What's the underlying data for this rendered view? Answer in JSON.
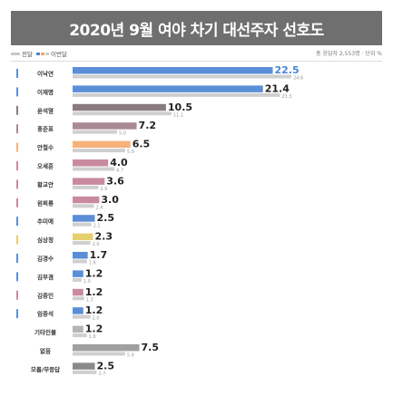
{
  "header": {
    "title": "2020년 9월 여야 차기 대선주자 선호도"
  },
  "legend": {
    "previous_label": "전달",
    "current_label": "이번달",
    "survey_note": "총 응답자 2,553명 · 단위 %"
  },
  "colors": {
    "previous": "#cfcfcf",
    "blue": "#5a8fd8",
    "gray_dark": "#8a8a8a",
    "mauve": "#a88a96",
    "orange": "#f5b27a",
    "pink": "#c98aa0",
    "yellow": "#e6cf6e",
    "light_gray": "#b5b5b5"
  },
  "chart_data": {
    "type": "bar",
    "orientation": "horizontal",
    "categories": [
      "이낙연",
      "이재명",
      "윤석열",
      "홍준표",
      "안철수",
      "오세훈",
      "황교안",
      "원희룡",
      "추미애",
      "심상정",
      "김경수",
      "김부겸",
      "김종인",
      "임종석",
      "기타인물",
      "없음",
      "모름/무응답"
    ],
    "series": [
      {
        "name": "이번달",
        "values": [
          22.5,
          21.4,
          10.5,
          7.2,
          6.5,
          4.0,
          3.6,
          3.0,
          2.5,
          2.3,
          1.7,
          1.2,
          1.2,
          1.2,
          1.2,
          7.5,
          2.5
        ]
      },
      {
        "name": "전달",
        "values": [
          24.6,
          23.3,
          11.1,
          5.0,
          5.9,
          4.7,
          2.9,
          2.4,
          2.1,
          2.0,
          1.6,
          1.0,
          1.3,
          2.0,
          1.6,
          5.9,
          2.7
        ]
      }
    ],
    "current_labels": [
      "22.5",
      "21.4",
      "10.5",
      "7.2",
      "6.5",
      "4.0",
      "3.6",
      "3.0",
      "2.5",
      "2.3",
      "1.7",
      "1.2",
      "1.2",
      "1.2",
      "1.2",
      "7.5",
      "2.5"
    ],
    "previous_labels": [
      "24.6",
      "23.3",
      "11.1",
      "5.0",
      "5.9",
      "4.7",
      "2.9",
      "2.4",
      "2.1",
      "2.0",
      "1.6",
      "1.0",
      "1.3",
      "2.0",
      "1.6",
      "5.9",
      "2.7"
    ],
    "bar_colors": [
      "#5a8fd8",
      "#5a8fd8",
      "#8a7b80",
      "#a88a96",
      "#f5b27a",
      "#c98aa0",
      "#c98aa0",
      "#c98aa0",
      "#5a8fd8",
      "#e6cf6e",
      "#5a8fd8",
      "#5a8fd8",
      "#c98aa0",
      "#5a8fd8",
      "#b5b5b5",
      "#a0a0a0",
      "#8a8a8a"
    ],
    "marker_colors": [
      "#5a8fd8",
      "#5a8fd8",
      "#8a7b80",
      "#a88a96",
      "#f5b27a",
      "#c98aa0",
      "#c98aa0",
      "#c98aa0",
      "#5a8fd8",
      "#e6cf6e",
      "#5a8fd8",
      "#5a8fd8",
      "#c98aa0",
      "#5a8fd8",
      "",
      "",
      ""
    ],
    "xlim": [
      0,
      25
    ],
    "grid": false,
    "legend_position": "top-left"
  }
}
